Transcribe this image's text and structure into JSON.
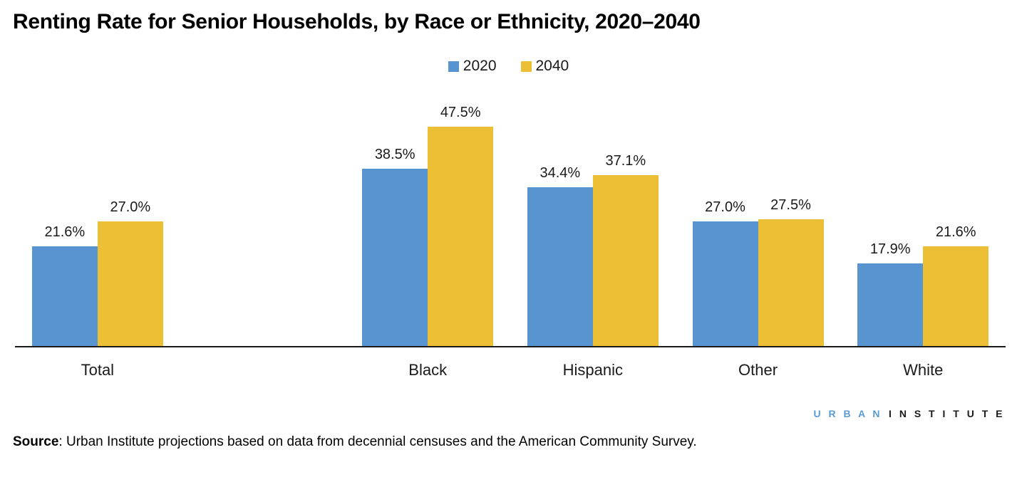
{
  "title": "Renting Rate for Senior Households, by Race or Ethnicity, 2020–2040",
  "chart_data": {
    "type": "bar",
    "categories": [
      "Total",
      "Black",
      "Hispanic",
      "Other",
      "White"
    ],
    "series": [
      {
        "name": "2020",
        "color": "#5794D0",
        "values": [
          21.6,
          38.5,
          34.4,
          27.0,
          17.9
        ]
      },
      {
        "name": "2040",
        "color": "#ECBF35",
        "values": [
          27.0,
          47.5,
          37.1,
          27.5,
          21.6
        ]
      }
    ],
    "value_label_format": "percent_one_decimal",
    "ylabel": "",
    "xlabel": "",
    "ylim": [
      0,
      50
    ],
    "grid": false,
    "legend_position": "top-center",
    "data_labels": true,
    "empty_slot_after_first": true
  },
  "footer": {
    "source_prefix": "Source",
    "source_rest": ": Urban Institute projections based on data from decennial censuses and the American Community Survey.",
    "logo": {
      "urban": "U R B A N",
      "institute": "I N S T I T U T E",
      "urban_color": "#5B9BD5"
    }
  }
}
